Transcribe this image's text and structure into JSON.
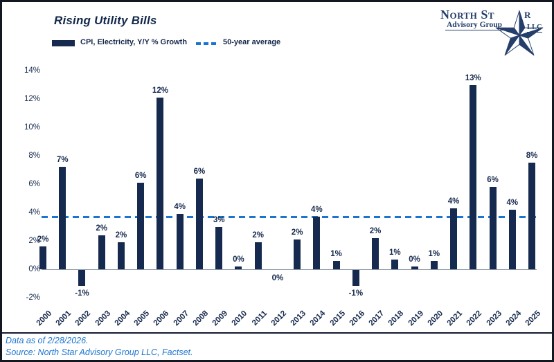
{
  "header": {
    "title": "Rising Utility Bills",
    "legend": [
      {
        "label": "CPI, Electricity, Y/Y % Growth",
        "swatch": "bar",
        "color": "#152A4E"
      },
      {
        "label": "50-year average",
        "swatch": "dashed-line",
        "color": "#1B75D0"
      }
    ]
  },
  "logo": {
    "big1": "N",
    "small1": "ORTH",
    "big2": "S",
    "small2": "T",
    "tail": "R",
    "subtitle": "Advisory Group",
    "suffix": "LLC"
  },
  "chart_data": {
    "type": "bar",
    "title": "Rising Utility Bills",
    "series_label": "CPI, Electricity, Y/Y % Growth",
    "categories": [
      "2000",
      "2001",
      "2002",
      "2003",
      "2004",
      "2005",
      "2006",
      "2007",
      "2008",
      "2009",
      "2010",
      "2011",
      "2012",
      "2013",
      "2014",
      "2015",
      "2016",
      "2017",
      "2018",
      "2019",
      "2020",
      "2021",
      "2022",
      "2023",
      "2024",
      "2025"
    ],
    "values": [
      1.6,
      7.2,
      -1.1,
      2.4,
      1.9,
      6.1,
      12.1,
      3.9,
      6.4,
      3.0,
      0.2,
      1.9,
      0.0,
      2.1,
      3.7,
      0.6,
      -1.1,
      2.2,
      0.7,
      0.2,
      0.6,
      4.3,
      13.0,
      5.8,
      4.2,
      7.5
    ],
    "bar_labels": [
      "2%",
      "7%",
      "-1%",
      "2%",
      "2%",
      "6%",
      "12%",
      "4%",
      "6%",
      "3%",
      "0%",
      "2%",
      "0%",
      "2%",
      "4%",
      "1%",
      "-1%",
      "2%",
      "1%",
      "0%",
      "1%",
      "4%",
      "13%",
      "6%",
      "4%",
      "8%"
    ],
    "average_line": {
      "label": "50-year average",
      "value": 3.7
    },
    "yticks": [
      14,
      12,
      10,
      8,
      6,
      4,
      2,
      0,
      -2
    ],
    "ytick_suffix": "%",
    "ylim": [
      -2.5,
      14.5
    ],
    "grid": false,
    "legend_position": "top-left",
    "colors": {
      "bar": "#152A4E",
      "average_line": "#1B75D0",
      "axis_line": "#8A97A8",
      "label_text": "#16294C"
    }
  },
  "footer": {
    "line1": "Data as of 2/28/2026.",
    "line2": "Source: North Star Advisory Group LLC, Factset."
  }
}
